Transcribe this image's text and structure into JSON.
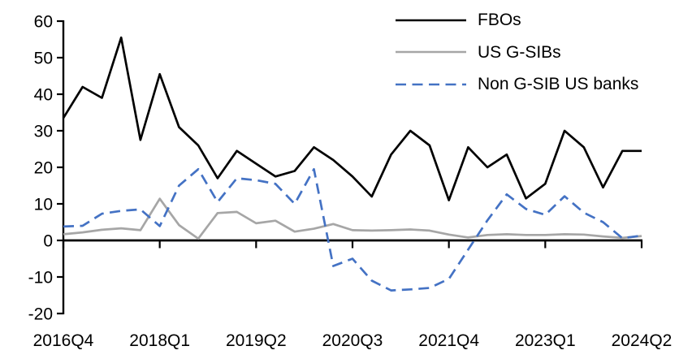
{
  "chart_data": {
    "type": "line",
    "title": "",
    "xlabel": "",
    "ylabel": "",
    "grid": false,
    "legend_position": "top-right",
    "ylim": [
      -20,
      60
    ],
    "y_ticks": [
      60,
      50,
      40,
      30,
      20,
      10,
      0,
      -10,
      -20
    ],
    "x_categories": [
      "2016Q4",
      "2017Q1",
      "2017Q2",
      "2017Q3",
      "2017Q4",
      "2018Q1",
      "2018Q2",
      "2018Q3",
      "2018Q4",
      "2019Q1",
      "2019Q2",
      "2019Q3",
      "2019Q4",
      "2020Q1",
      "2020Q2",
      "2020Q3",
      "2020Q4",
      "2021Q1",
      "2021Q2",
      "2021Q3",
      "2021Q4",
      "2022Q1",
      "2022Q2",
      "2022Q3",
      "2022Q4",
      "2023Q1",
      "2023Q2",
      "2023Q3",
      "2023Q4",
      "2024Q1",
      "2024Q2"
    ],
    "x_tick_indices": [
      0,
      5,
      10,
      15,
      20,
      25,
      30
    ],
    "x_tick_labels": [
      "2016Q4",
      "2018Q1",
      "2019Q2",
      "2020Q3",
      "2021Q4",
      "2023Q1",
      "2024Q2"
    ],
    "series": [
      {
        "name": "FBOs",
        "color": "#000000",
        "style": "solid",
        "values": [
          33.5,
          42,
          39,
          55.5,
          27.5,
          45.5,
          31,
          26,
          17,
          24.5,
          21,
          17.5,
          19,
          25.5,
          22,
          17.5,
          12,
          23.5,
          30,
          26,
          11,
          25.5,
          20,
          23.5,
          11.5,
          15.5,
          30,
          25.5,
          14.5,
          24.5,
          24.5
        ]
      },
      {
        "name": "US G-SIBs",
        "color": "#a6a6a6",
        "style": "solid",
        "values": [
          1.7,
          2.2,
          2.9,
          3.3,
          2.8,
          11.4,
          4.2,
          0.5,
          7.5,
          7.8,
          4.7,
          5.4,
          2.4,
          3.2,
          4.5,
          2.8,
          2.7,
          2.8,
          3.0,
          2.7,
          1.6,
          0.8,
          1.5,
          1.7,
          1.5,
          1.5,
          1.7,
          1.6,
          1.1,
          0.7,
          1.2
        ]
      },
      {
        "name": "Non G-SIB US banks",
        "color": "#4472c4",
        "style": "dashed",
        "values": [
          3.8,
          4,
          7.3,
          8.1,
          8.5,
          3.9,
          15,
          19.5,
          10.5,
          17,
          16.5,
          15.5,
          10,
          19.5,
          -7,
          -5,
          -11,
          -13.7,
          -13.4,
          -13,
          -10.5,
          -2.5,
          5.5,
          12.6,
          8.6,
          7,
          12.1,
          7.6,
          5,
          0.6,
          1.3
        ]
      }
    ]
  }
}
